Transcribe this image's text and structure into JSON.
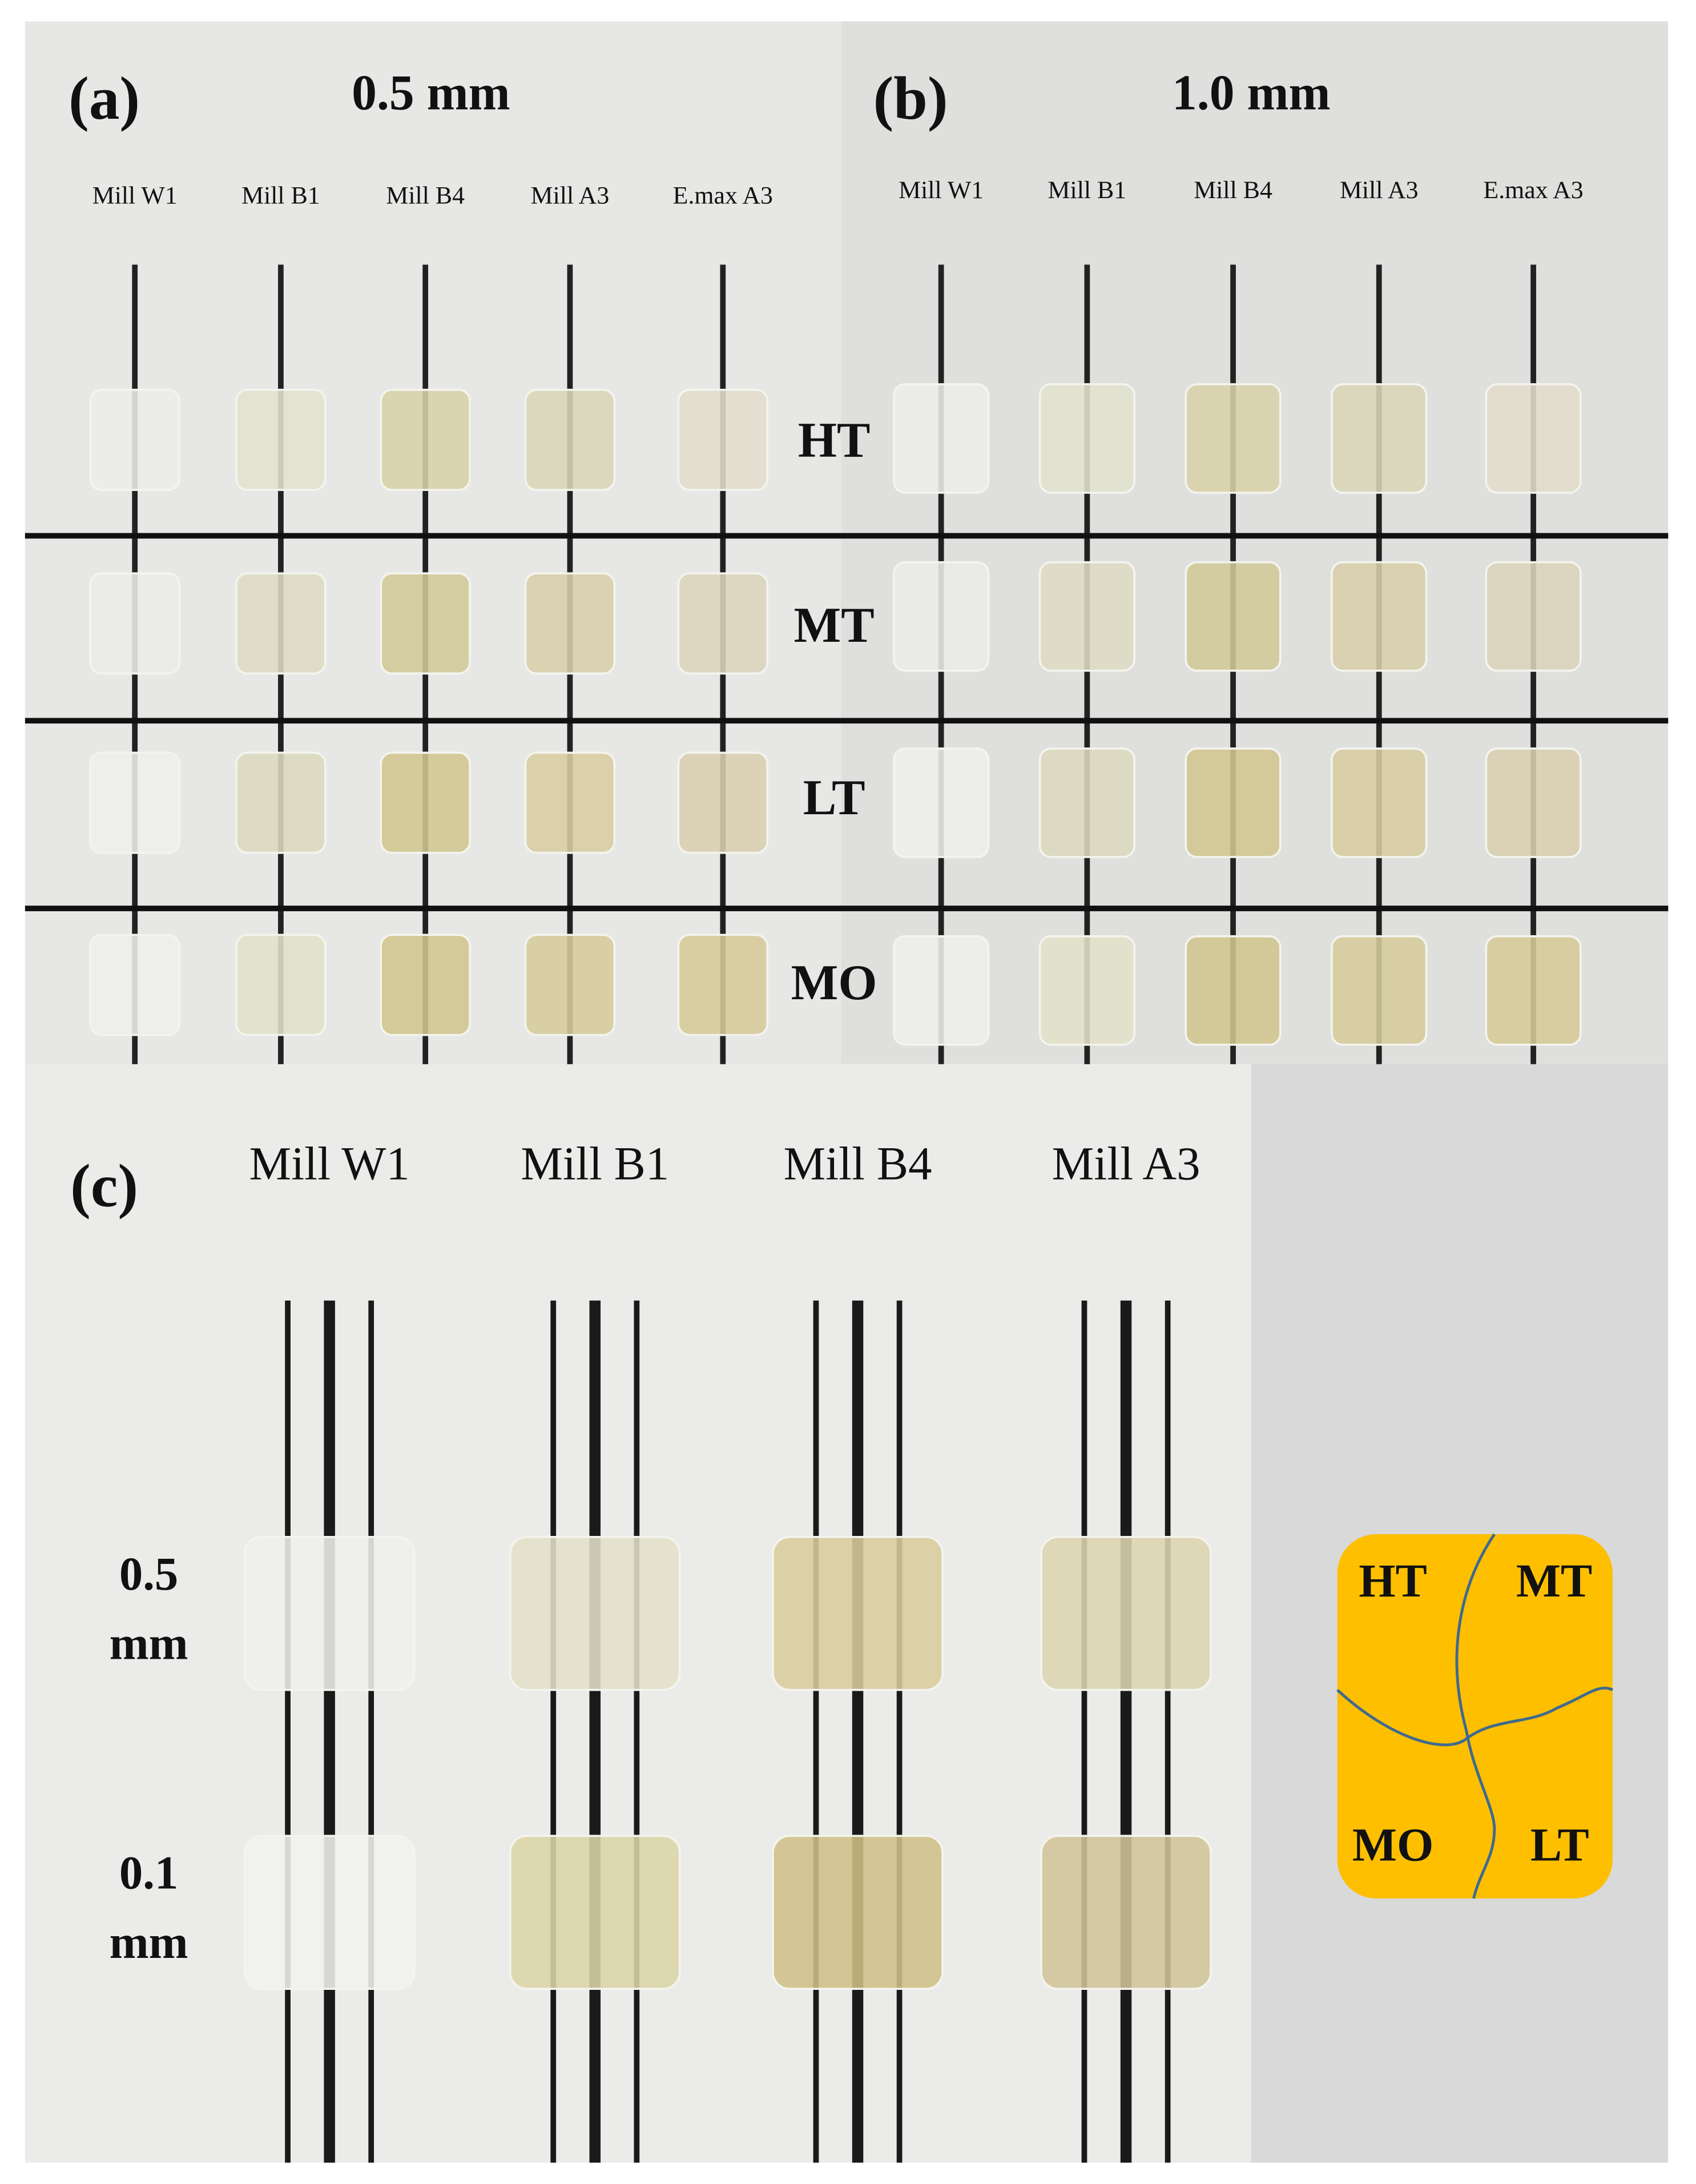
{
  "panel_a": {
    "label": "(a)",
    "thickness": "0.5 mm",
    "columns": [
      "Mill W1",
      "Mill B1",
      "Mill B4",
      "Mill A3",
      "E.max A3"
    ]
  },
  "panel_b": {
    "label": "(b)",
    "thickness": "1.0 mm",
    "columns": [
      "Mill W1",
      "Mill B1",
      "Mill B4",
      "Mill A3",
      "E.max A3"
    ]
  },
  "rows": [
    "HT",
    "MT",
    "LT",
    "MO"
  ],
  "panel_c": {
    "label": "(c)",
    "columns": [
      "Mill W1",
      "Mill B1",
      "Mill B4",
      "Mill A3"
    ],
    "thicknesses": [
      [
        "0.5",
        "mm"
      ],
      [
        "0.1",
        "mm"
      ]
    ]
  },
  "legend": {
    "top_left": "HT",
    "top_right": "MT",
    "bottom_left": "MO",
    "bottom_right": "LT"
  }
}
